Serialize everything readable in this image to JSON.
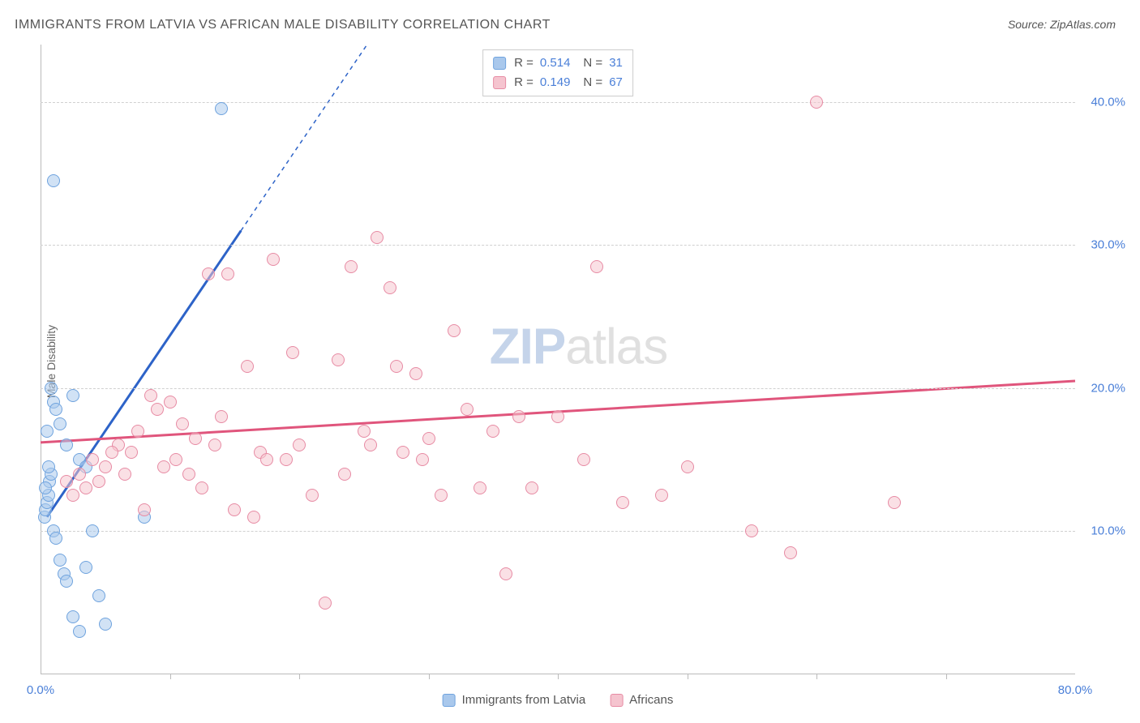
{
  "title": "IMMIGRANTS FROM LATVIA VS AFRICAN MALE DISABILITY CORRELATION CHART",
  "source_prefix": "Source: ",
  "source_name": "ZipAtlas.com",
  "y_axis_label": "Male Disability",
  "watermark_a": "ZIP",
  "watermark_b": "atlas",
  "chart": {
    "type": "scatter",
    "xlim": [
      0,
      80
    ],
    "ylim": [
      0,
      44
    ],
    "x_ticks": [
      0,
      80
    ],
    "x_tick_labels": [
      "0.0%",
      "80.0%"
    ],
    "x_minor_ticks": [
      10,
      20,
      30,
      40,
      50,
      60,
      70
    ],
    "y_ticks": [
      10,
      20,
      30,
      40
    ],
    "y_tick_labels": [
      "10.0%",
      "20.0%",
      "30.0%",
      "40.0%"
    ],
    "grid_color": "#d0d0d0",
    "background_color": "#ffffff",
    "axis_color": "#bbbbbb",
    "tick_label_color": "#4a7fd8",
    "point_radius": 8,
    "series": [
      {
        "name": "Immigrants from Latvia",
        "fill_color": "#a9c8ec",
        "stroke_color": "#6fa3de",
        "r_value": "0.514",
        "n_value": "31",
        "points": [
          [
            0.3,
            11.0
          ],
          [
            0.4,
            11.5
          ],
          [
            0.5,
            12.0
          ],
          [
            0.6,
            12.5
          ],
          [
            0.7,
            13.5
          ],
          [
            0.8,
            14.0
          ],
          [
            1.0,
            10.0
          ],
          [
            1.2,
            9.5
          ],
          [
            1.5,
            8.0
          ],
          [
            1.8,
            7.0
          ],
          [
            2.0,
            6.5
          ],
          [
            2.5,
            4.0
          ],
          [
            3.0,
            3.0
          ],
          [
            3.5,
            7.5
          ],
          [
            4.0,
            10.0
          ],
          [
            4.5,
            5.5
          ],
          [
            5.0,
            3.5
          ],
          [
            0.5,
            17.0
          ],
          [
            0.8,
            20.0
          ],
          [
            1.0,
            19.0
          ],
          [
            1.2,
            18.5
          ],
          [
            1.5,
            17.5
          ],
          [
            2.0,
            16.0
          ],
          [
            2.5,
            19.5
          ],
          [
            3.0,
            15.0
          ],
          [
            3.5,
            14.5
          ],
          [
            0.6,
            14.5
          ],
          [
            0.4,
            13.0
          ],
          [
            1.0,
            34.5
          ],
          [
            14.0,
            39.5
          ],
          [
            8.0,
            11.0
          ]
        ],
        "trend": {
          "x1": 0.5,
          "y1": 11.0,
          "x2": 15.5,
          "y2": 31.0,
          "dash_to_y": 44,
          "color": "#2d63c8",
          "width": 3
        }
      },
      {
        "name": "Africans",
        "fill_color": "#f5c4cf",
        "stroke_color": "#e78ba4",
        "r_value": "0.149",
        "n_value": "67",
        "points": [
          [
            2,
            13.5
          ],
          [
            3,
            14
          ],
          [
            4,
            15
          ],
          [
            5,
            14.5
          ],
          [
            6,
            16
          ],
          [
            7,
            15.5
          ],
          [
            8,
            11.5
          ],
          [
            9,
            18.5
          ],
          [
            10,
            19
          ],
          [
            11,
            17.5
          ],
          [
            11.5,
            14
          ],
          [
            12,
            16.5
          ],
          [
            13,
            28
          ],
          [
            14,
            18
          ],
          [
            15,
            11.5
          ],
          [
            16,
            21.5
          ],
          [
            17,
            15.5
          ],
          [
            18,
            29
          ],
          [
            19,
            15
          ],
          [
            20,
            16
          ],
          [
            21,
            12.5
          ],
          [
            22,
            5
          ],
          [
            23,
            22
          ],
          [
            24,
            28.5
          ],
          [
            25,
            17
          ],
          [
            26,
            30.5
          ],
          [
            27,
            27
          ],
          [
            28,
            15.5
          ],
          [
            29,
            21
          ],
          [
            30,
            16.5
          ],
          [
            31,
            12.5
          ],
          [
            32,
            24
          ],
          [
            34,
            13
          ],
          [
            35,
            17
          ],
          [
            36,
            7
          ],
          [
            37,
            18
          ],
          [
            38,
            13
          ],
          [
            40,
            18
          ],
          [
            42,
            15
          ],
          [
            43,
            28.5
          ],
          [
            48,
            12.5
          ],
          [
            55,
            10
          ],
          [
            58,
            8.5
          ],
          [
            60,
            40
          ],
          [
            66,
            12
          ],
          [
            3.5,
            13
          ],
          [
            4.5,
            13.5
          ],
          [
            5.5,
            15.5
          ],
          [
            6.5,
            14
          ],
          [
            7.5,
            17
          ],
          [
            8.5,
            19.5
          ],
          [
            9.5,
            14.5
          ],
          [
            10.5,
            15
          ],
          [
            12.5,
            13
          ],
          [
            13.5,
            16
          ],
          [
            14.5,
            28
          ],
          [
            16.5,
            11
          ],
          [
            17.5,
            15
          ],
          [
            19.5,
            22.5
          ],
          [
            23.5,
            14
          ],
          [
            25.5,
            16
          ],
          [
            27.5,
            21.5
          ],
          [
            29.5,
            15
          ],
          [
            33,
            18.5
          ],
          [
            45,
            12
          ],
          [
            50,
            14.5
          ],
          [
            2.5,
            12.5
          ]
        ],
        "trend": {
          "x1": 0,
          "y1": 16.2,
          "x2": 80,
          "y2": 20.5,
          "color": "#e0557c",
          "width": 3
        }
      }
    ]
  },
  "legend_top": {
    "r_label": "R =",
    "n_label": "N ="
  },
  "legend_bottom_series": [
    "Immigrants from Latvia",
    "Africans"
  ]
}
